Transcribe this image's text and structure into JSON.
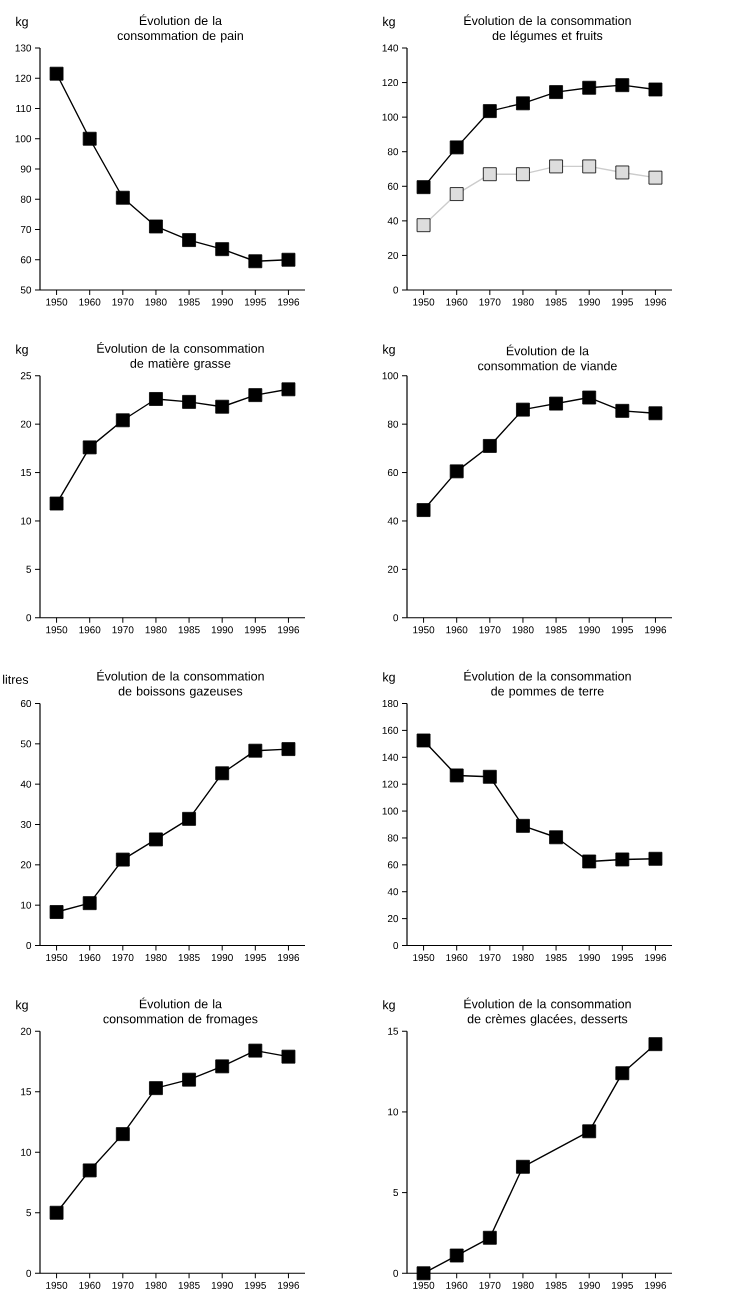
{
  "chart_data": [
    {
      "type": "line",
      "title": "Évolution de la consommation de pain",
      "ylabel": "kg",
      "categories": [
        "1950",
        "1960",
        "1970",
        "1980",
        "1985",
        "1990",
        "1995",
        "1996"
      ],
      "values": [
        121.5,
        100,
        80.5,
        71,
        66.5,
        63.5,
        59.5,
        60
      ],
      "color": "#000000",
      "ylim": [
        50,
        130
      ],
      "yticks": [
        50,
        60,
        70,
        80,
        90,
        100,
        110,
        120,
        130
      ],
      "marker": "square"
    },
    {
      "type": "line",
      "title": "Évolution de la consommation de légumes et fruits",
      "ylabel": "kg",
      "categories": [
        "1950",
        "1960",
        "1970",
        "1980",
        "1985",
        "1990",
        "1995",
        "1996"
      ],
      "series": [
        {
          "color": "#000000",
          "values": [
            59.5,
            82.5,
            103.5,
            108,
            114.5,
            117,
            118.5,
            116
          ]
        },
        {
          "color": "#dddddd",
          "values": [
            37.5,
            55.5,
            67,
            67,
            71.5,
            71.5,
            68,
            65
          ]
        }
      ],
      "ylim": [
        0,
        140
      ],
      "yticks": [
        0,
        20,
        40,
        60,
        80,
        100,
        120,
        140
      ],
      "marker": "square"
    },
    {
      "type": "line",
      "title": "Évolution de la consommation de matière grasse",
      "ylabel": "kg",
      "categories": [
        "1950",
        "1960",
        "1970",
        "1980",
        "1985",
        "1990",
        "1995",
        "1996"
      ],
      "values": [
        11.8,
        17.6,
        20.4,
        22.6,
        22.3,
        21.8,
        23,
        23.6
      ],
      "color": "#000000",
      "ylim": [
        0,
        25
      ],
      "yticks": [
        0,
        5,
        10,
        15,
        20,
        25
      ],
      "marker": "square"
    },
    {
      "type": "line",
      "title": "Évolution de la consommation de viande",
      "ylabel": "kg",
      "categories": [
        "1950",
        "1960",
        "1970",
        "1980",
        "1985",
        "1990",
        "1995",
        "1996"
      ],
      "values": [
        44.5,
        60.5,
        71,
        86,
        88.5,
        91,
        85.5,
        84.5
      ],
      "color": "#000000",
      "ylim": [
        0,
        100
      ],
      "yticks": [
        0,
        20,
        40,
        60,
        80,
        100
      ],
      "marker": "square"
    },
    {
      "type": "line",
      "title": "Évolution de la consommation de boissons gazeuses",
      "ylabel": "litres",
      "categories": [
        "1950",
        "1960",
        "1970",
        "1980",
        "1985",
        "1990",
        "1995",
        "1996"
      ],
      "values": [
        8.3,
        10.5,
        21.3,
        26.3,
        31.4,
        42.7,
        48.3,
        48.7
      ],
      "color": "#000000",
      "ylim": [
        0,
        60
      ],
      "yticks": [
        0,
        10,
        20,
        30,
        40,
        50,
        60
      ],
      "marker": "square"
    },
    {
      "type": "line",
      "title": "Évolution de la consommation de pommes de terre",
      "ylabel": "kg",
      "categories": [
        "1950",
        "1960",
        "1970",
        "1980",
        "1985",
        "1990",
        "1995",
        "1996"
      ],
      "values": [
        152.5,
        126.5,
        125.5,
        89,
        80.5,
        62.5,
        64,
        64.5
      ],
      "color": "#000000",
      "ylim": [
        0,
        180
      ],
      "yticks": [
        0,
        20,
        40,
        60,
        80,
        100,
        120,
        140,
        160,
        180
      ],
      "marker": "square"
    },
    {
      "type": "line",
      "title": "Évolution de la consommation de fromages",
      "ylabel": "kg",
      "categories": [
        "1950",
        "1960",
        "1970",
        "1980",
        "1985",
        "1990",
        "1995",
        "1996"
      ],
      "values": [
        5,
        8.5,
        11.5,
        15.3,
        16,
        17.1,
        18.4,
        17.9
      ],
      "color": "#000000",
      "ylim": [
        0,
        20
      ],
      "yticks": [
        0,
        5,
        10,
        15,
        20
      ],
      "marker": "square"
    },
    {
      "type": "line",
      "title": "Évolution de la consommation de crèmes glacées, desserts",
      "ylabel": "kg",
      "categories": [
        "1950",
        "1960",
        "1970",
        "1980",
        "1985",
        "1990",
        "1995",
        "1996"
      ],
      "values": [
        0,
        1.1,
        2.2,
        6.6,
        null,
        8.8,
        12.4,
        14.2
      ],
      "color": "#000000",
      "ylim": [
        0,
        15
      ],
      "yticks": [
        0,
        5,
        10,
        15
      ],
      "marker": "square"
    }
  ]
}
